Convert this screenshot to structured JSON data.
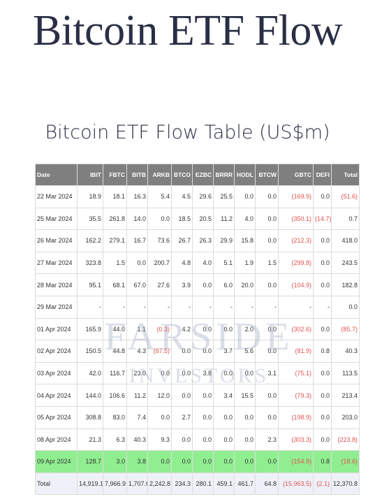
{
  "page": {
    "title": "Bitcoin ETF Flow",
    "table_title": "Bitcoin ETF Flow Table (US$m)"
  },
  "watermark": {
    "line1": "FARSIDE",
    "line2": "INVESTORS"
  },
  "table": {
    "headers": [
      "Date",
      "IBIT",
      "FBTC",
      "BITB",
      "ARKB",
      "BTCO",
      "EZBC",
      "BRRR",
      "HODL",
      "BTCW",
      "GBTC",
      "DEFI",
      "Total"
    ],
    "rows": [
      {
        "cells": [
          "22 Mar 2024",
          "18.9",
          "18.1",
          "16.3",
          "5.4",
          "4.5",
          "29.6",
          "25.5",
          "0.0",
          "0.0",
          "(169.9)",
          "0.0",
          "(51.6)"
        ]
      },
      {
        "cells": [
          "25 Mar 2024",
          "35.5",
          "261.8",
          "14.0",
          "0.0",
          "18.5",
          "20.5",
          "11.2",
          "4.0",
          "0.0",
          "(350.1)",
          "(14.7)",
          "0.7"
        ]
      },
      {
        "cells": [
          "26 Mar 2024",
          "162.2",
          "279.1",
          "16.7",
          "73.6",
          "26.7",
          "26.3",
          "29.9",
          "15.8",
          "0.0",
          "(212.3)",
          "0.0",
          "418.0"
        ]
      },
      {
        "cells": [
          "27 Mar 2024",
          "323.8",
          "1.5",
          "0.0",
          "200.7",
          "4.8",
          "4.0",
          "5.1",
          "1.9",
          "1.5",
          "(299.8)",
          "0.0",
          "243.5"
        ]
      },
      {
        "cells": [
          "28 Mar 2024",
          "95.1",
          "68.1",
          "67.0",
          "27.6",
          "3.9",
          "0.0",
          "6.0",
          "20.0",
          "0.0",
          "(104.9)",
          "0.0",
          "182.8"
        ]
      },
      {
        "cells": [
          "29 Mar 2024",
          "-",
          "-",
          "-",
          "-",
          "-",
          "-",
          "-",
          "-",
          "-",
          "-",
          "-",
          "0.0"
        ]
      },
      {
        "cells": [
          "01 Apr 2024",
          "165.9",
          "44.0",
          "1.1",
          "(0.3)",
          "4.2",
          "0.0",
          "0.0",
          "2.0",
          "0.0",
          "(302.6)",
          "0.0",
          "(85.7)"
        ]
      },
      {
        "cells": [
          "02 Apr 2024",
          "150.5",
          "44.8",
          "4.3",
          "(87.5)",
          "0.0",
          "0.0",
          "3.7",
          "5.6",
          "0.0",
          "(81.9)",
          "0.8",
          "40.3"
        ]
      },
      {
        "cells": [
          "03 Apr 2024",
          "42.0",
          "116.7",
          "23.0",
          "0.0",
          "0.0",
          "3.8",
          "0.0",
          "0.0",
          "3.1",
          "(75.1)",
          "0.0",
          "113.5"
        ]
      },
      {
        "cells": [
          "04 Apr 2024",
          "144.0",
          "106.6",
          "11.2",
          "12.0",
          "0.0",
          "0.0",
          "3.4",
          "15.5",
          "0.0",
          "(79.3)",
          "0.0",
          "213.4"
        ]
      },
      {
        "cells": [
          "05 Apr 2024",
          "308.8",
          "83.0",
          "7.4",
          "0.0",
          "2.7",
          "0.0",
          "0.0",
          "0.0",
          "0.0",
          "(198.9)",
          "0.0",
          "203.0"
        ]
      },
      {
        "cells": [
          "08 Apr 2024",
          "21.3",
          "6.3",
          "40.3",
          "9.3",
          "0.0",
          "0.0",
          "0.0",
          "0.0",
          "2.3",
          "(303.3)",
          "0.0",
          "(223.8)"
        ]
      },
      {
        "cells": [
          "09 Apr 2024",
          "128.7",
          "3.0",
          "3.8",
          "0.0",
          "0.0",
          "0.0",
          "0.0",
          "0.0",
          "0.0",
          "(154.9)",
          "0.8",
          "(18.6)"
        ],
        "highlight": true
      }
    ],
    "total": {
      "cells": [
        "Total",
        "14,919.1",
        "7,966.9",
        "1,707.6",
        "2,242.8",
        "234.3",
        "280.1",
        "459.1",
        "461.7",
        "64.8",
        "(15,963.5)",
        "(2.1)",
        "12,370.8"
      ]
    }
  },
  "colors": {
    "header_bg": "#7f7f7f",
    "negative": "#e05252",
    "highlight_row": "#90ee90",
    "total_row": "#eef1f8",
    "title": "#2b2f45"
  }
}
